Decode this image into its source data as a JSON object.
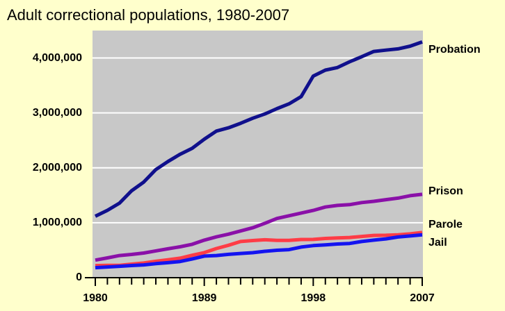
{
  "chart_data": {
    "type": "line",
    "title": "Adult correctional populations, 1980-2007",
    "x": [
      1980,
      1981,
      1982,
      1983,
      1984,
      1985,
      1986,
      1987,
      1988,
      1989,
      1990,
      1991,
      1992,
      1993,
      1994,
      1995,
      1996,
      1997,
      1998,
      1999,
      2000,
      2001,
      2002,
      2003,
      2004,
      2005,
      2006,
      2007
    ],
    "series": [
      {
        "name": "Probation",
        "color": "#10108c",
        "values": [
          1118097,
          1225934,
          1357264,
          1582947,
          1740948,
          1968712,
          2114621,
          2247158,
          2356483,
          2522125,
          2670234,
          2728472,
          2811611,
          2903061,
          2981022,
          3077861,
          3164996,
          3296513,
          3670441,
          3779922,
          3826209,
          3931731,
          4024067,
          4120012,
          4143466,
          4166757,
          4215361,
          4293163
        ]
      },
      {
        "name": "Prison",
        "color": "#8a10a8",
        "values": [
          319598,
          360029,
          402914,
          423898,
          448264,
          487593,
          526436,
          562814,
          607766,
          683367,
          743382,
          792535,
          850566,
          909381,
          990147,
          1078542,
          1127528,
          1176922,
          1224469,
          1287172,
          1316333,
          1330007,
          1367547,
          1390279,
          1421345,
          1448344,
          1492973,
          1517867
        ]
      },
      {
        "name": "Parole",
        "color": "#ff3c46",
        "values": [
          220438,
          225539,
          224604,
          246440,
          266992,
          300203,
          325638,
          355505,
          407977,
          456803,
          531407,
          590442,
          658601,
          676100,
          690371,
          679421,
          679733,
          694787,
          696385,
          714457,
          723898,
          732333,
          750934,
          769925,
          771852,
          780616,
          798202,
          824365
        ]
      },
      {
        "name": "Jail",
        "color": "#1414f0",
        "values": [
          182288,
          195085,
          207853,
          221815,
          233018,
          254986,
          272735,
          294092,
          341893,
          393303,
          403019,
          424129,
          441781,
          455500,
          479800,
          499300,
          510400,
          557974,
          584372,
          596485,
          613534,
          623628,
          658228,
          684431,
          706907,
          740770,
          760216,
          780174
        ]
      }
    ],
    "xlim": [
      1980,
      2007
    ],
    "xticks": [
      1980,
      1989,
      1998,
      2007
    ],
    "xminorticks": [
      1981,
      1982,
      1983,
      1984,
      1985,
      1986,
      1987,
      1988,
      1990,
      1991,
      1992,
      1993,
      1994,
      1995,
      1996,
      1997,
      1999,
      2000,
      2001,
      2002,
      2003,
      2004,
      2005,
      2006
    ],
    "ylim": [
      0,
      4500000
    ],
    "yticks": [
      0,
      {
        "value": 1000000,
        "label": "1,000,000"
      },
      {
        "value": 2000000,
        "label": "2,000,000"
      },
      {
        "value": 3000000,
        "label": "3,000,000"
      },
      {
        "value": 4000000,
        "label": "4,000,000"
      }
    ],
    "grid": true
  }
}
